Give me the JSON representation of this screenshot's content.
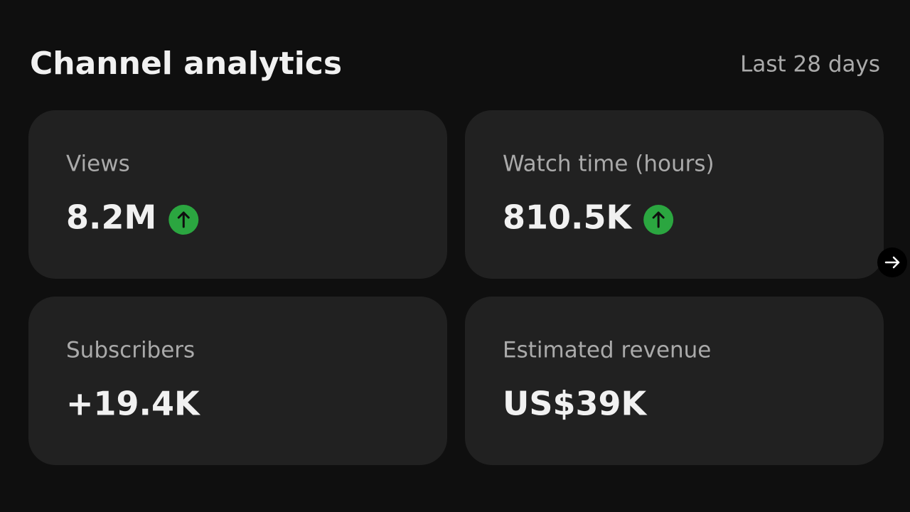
{
  "header": {
    "title": "Channel analytics",
    "period": "Last 28 days"
  },
  "cards": [
    {
      "label": "Views",
      "value": "8.2M",
      "trend": "up"
    },
    {
      "label": "Watch time (hours)",
      "value": "810.5K",
      "trend": "up"
    },
    {
      "label": "Subscribers",
      "value": "+19.4K"
    },
    {
      "label": "Estimated revenue",
      "value": "US$39K"
    }
  ]
}
